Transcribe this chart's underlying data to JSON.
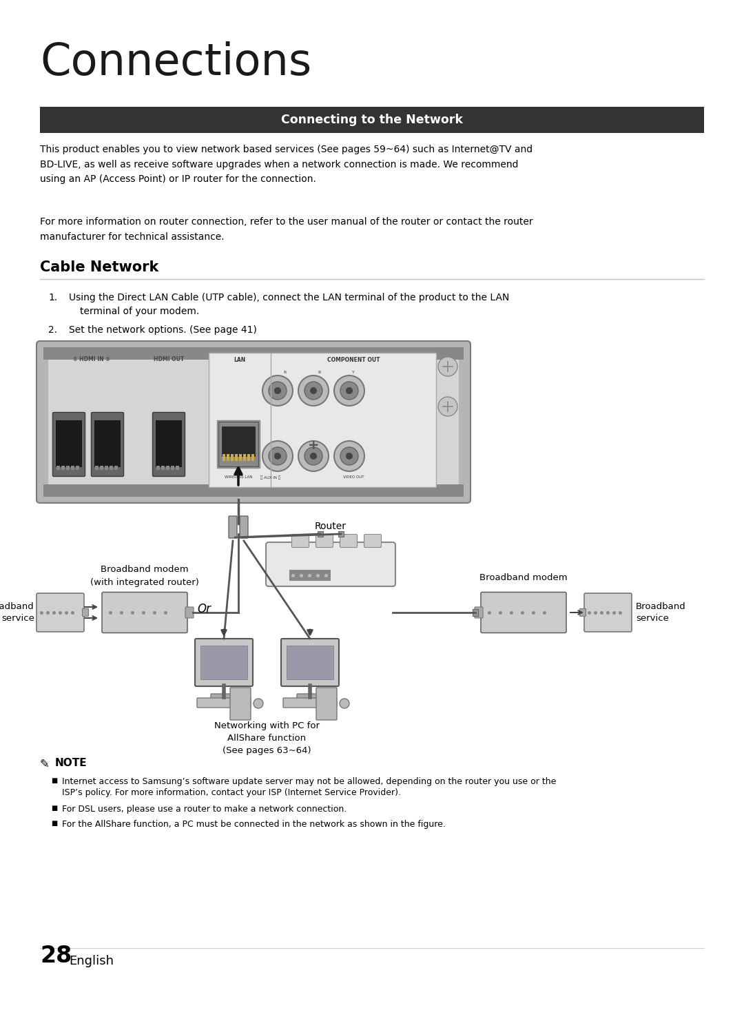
{
  "title": "Connections",
  "section_header": "Connecting to the Network",
  "section_header_bg": "#333333",
  "section_header_color": "#ffffff",
  "body_text_1": "This product enables you to view network based services (See pages 59~64) such as Internet@TV and\nBD-LIVE, as well as receive software upgrades when a network connection is made. We recommend\nusing an AP (Access Point) or IP router for the connection.",
  "body_text_2": "For more information on router connection, refer to the user manual of the router or contact the router\nmanufacturer for technical assistance.",
  "section2_title": "Cable Network",
  "step1_num": "1.",
  "step1_text": "Using the Direct LAN Cable (UTP cable), connect the LAN terminal of the product to the LAN",
  "step1_cont": "terminal of your modem.",
  "step2_num": "2.",
  "step2_text": "Set the network options. (See page 41)",
  "diagram_label_left_top1": "Broadband modem",
  "diagram_label_left_top2": "(with integrated router)",
  "diagram_label_left_bottom": "Broadband\nservice",
  "diagram_label_right_top": "Broadband modem",
  "diagram_label_right_bottom": "Broadband\nservice",
  "diagram_label_router": "Router",
  "diagram_label_or": "Or",
  "diagram_label_pc": "Networking with PC for\nAllShare function\n(See pages 63~64)",
  "note_title": "NOTE",
  "note_1a": "Internet access to Samsung’s software update server may not be allowed, depending on the router you use or the",
  "note_1b": "ISP’s policy. For more information, contact your ISP (Internet Service Provider).",
  "note_2": "For DSL users, please use a router to make a network connection.",
  "note_3": "For the AllShare function, a PC must be connected in the network as shown in the figure.",
  "page_number": "28",
  "page_lang": "English",
  "bg_color": "#ffffff",
  "text_color": "#000000",
  "panel_color": "#c8c8c8",
  "panel_inner": "#d8d8d8",
  "modem_color": "#cccccc",
  "router_color": "#e0e0e0"
}
